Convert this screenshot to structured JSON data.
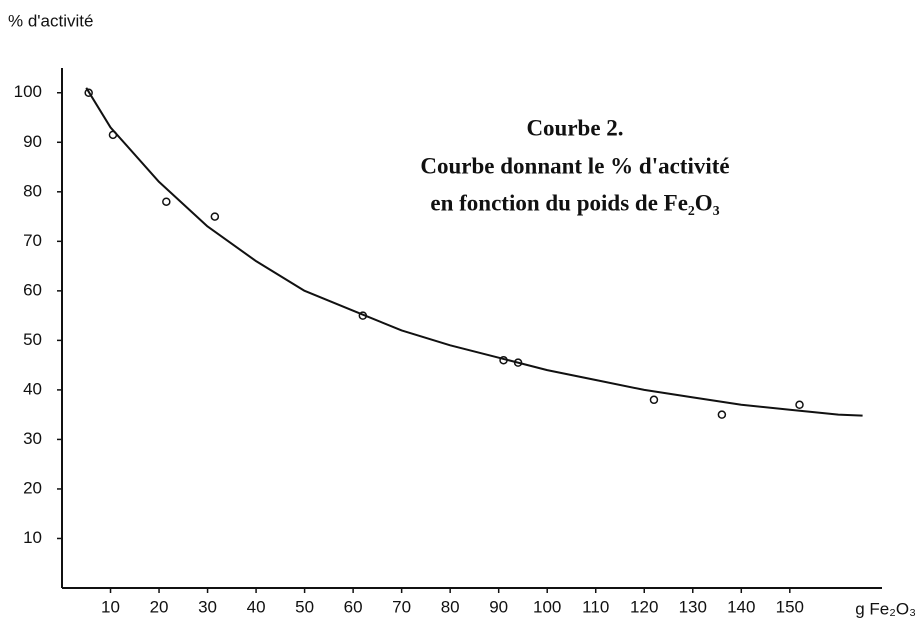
{
  "chart_data": {
    "type": "scatter",
    "title": "Courbe 2.",
    "subtitle": [
      "Courbe donnant le % d'activité",
      "en fonction du poids de Fe₂O₃"
    ],
    "y_label": "% d'activité",
    "x_label": "g Fe₂O₃",
    "xlim": [
      0,
      169
    ],
    "ylim": [
      0,
      105
    ],
    "xticks": [
      10,
      20,
      30,
      40,
      50,
      60,
      70,
      80,
      90,
      100,
      110,
      120,
      130,
      140,
      150
    ],
    "yticks": [
      10,
      20,
      30,
      40,
      50,
      60,
      70,
      80,
      90,
      100
    ],
    "grid": false,
    "series": [
      {
        "type": "scatter",
        "color": "#111111",
        "x": [
          5.5,
          10.5,
          21.5,
          31.5,
          62,
          91,
          94,
          122,
          136,
          152
        ],
        "values": [
          100,
          91.5,
          78,
          75,
          55,
          46,
          45.5,
          38,
          35,
          37
        ]
      },
      {
        "type": "line",
        "color": "#111111",
        "x": [
          5,
          10,
          20,
          30,
          40,
          50,
          60,
          70,
          80,
          90,
          100,
          110,
          120,
          130,
          140,
          150,
          160,
          165
        ],
        "values": [
          101,
          93,
          82,
          73,
          66,
          60,
          56,
          52,
          49,
          46.5,
          44,
          42,
          40,
          38.5,
          37,
          36,
          35,
          34.8
        ]
      }
    ]
  }
}
